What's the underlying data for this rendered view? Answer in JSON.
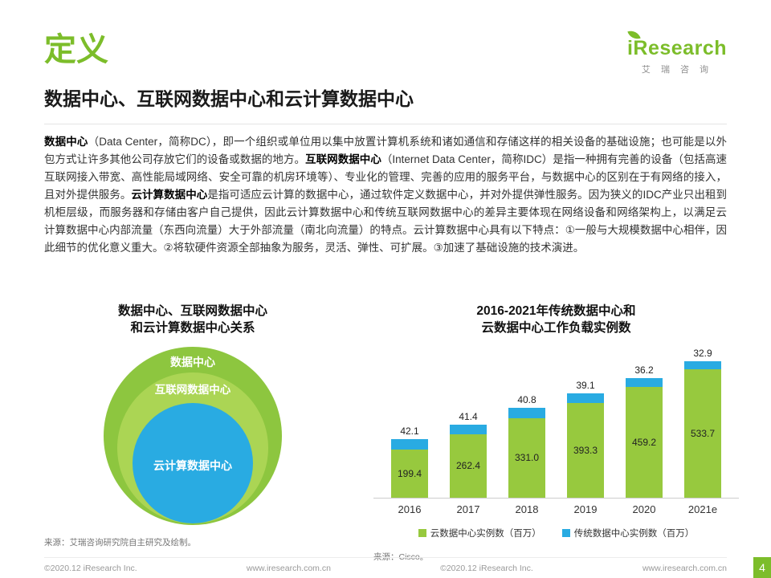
{
  "page": {
    "section_title": "定义",
    "subtitle": "数据中心、互联网数据中心和云计算数据中心"
  },
  "logo": {
    "brand": "iResearch",
    "brand_cn": "艾 瑞 咨 询"
  },
  "colors": {
    "brand_green": "#7cbd2a",
    "bar_green": "#97c93e",
    "bar_cyan": "#29abe2"
  },
  "body": {
    "segments": [
      {
        "text": "数据中心",
        "bold": true
      },
      {
        "text": "（Data Center，简称DC），即一个组织或单位用以集中放置计算机系统和诸如通信和存储这样的相关设备的基础设施；也可能是以外包方式让许多其他公司存放它们的设备或数据的地方。",
        "bold": false
      },
      {
        "text": "互联网数据中心",
        "bold": true
      },
      {
        "text": "（Internet Data Center，简称IDC）是指一种拥有完善的设备（包括高速互联网接入带宽、高性能局域网络、安全可靠的机房环境等）、专业化的管理、完善的应用的服务平台，与数据中心的区别在于有网络的接入，且对外提供服务。",
        "bold": false
      },
      {
        "text": "云计算数据中心",
        "bold": true
      },
      {
        "text": "是指可适应云计算的数据中心，通过软件定义数据中心，并对外提供弹性服务。因为狭义的IDC产业只出租到机柜层级，而服务器和存储由客户自己提供，因此云计算数据中心和传统互联网数据中心的差异主要体现在网络设备和网络架构上，以满足云计算数据中心内部流量（东西向流量）大于外部流量（南北向流量）的特点。云计算数据中心具有以下特点：①一般与大规模数据中心相伴，因此细节的优化意义重大。②将软硬件资源全部抽象为服务，灵活、弹性、可扩展。③加速了基础设施的技术演进。",
        "bold": false
      }
    ]
  },
  "figures": {
    "venn": {
      "title_line1": "数据中心、互联网数据中心",
      "title_line2": "和云计算数据中心关系",
      "rings": [
        {
          "label": "数据中心",
          "color": "#8dc63f"
        },
        {
          "label": "互联网数据中心",
          "color": "#abd554"
        },
        {
          "label": "云计算数据中心",
          "color": "#29abe2"
        }
      ],
      "source": "来源：艾瑞咨询研究院自主研究及绘制。"
    },
    "bar": {
      "title_line1": "2016-2021年传统数据中心和",
      "title_line2": "云数据中心工作负载实例数",
      "source": "来源：Cisco。"
    }
  },
  "chart_data": {
    "type": "bar",
    "stacked": true,
    "title": "2016-2021年传统数据中心和云数据中心工作负载实例数",
    "categories": [
      "2016",
      "2017",
      "2018",
      "2019",
      "2020",
      "2021e"
    ],
    "series": [
      {
        "name": "云数据中心实例数（百万）",
        "color": "#97c93e",
        "values": [
          199.4,
          262.4,
          331.0,
          393.3,
          459.2,
          533.7
        ]
      },
      {
        "name": "传统数据中心实例数（百万）",
        "color": "#29abe2",
        "values": [
          42.1,
          41.4,
          40.8,
          39.1,
          36.2,
          32.9
        ]
      }
    ],
    "xlabel": "",
    "ylabel": "",
    "ylim": [
      0,
      600
    ],
    "grid": false,
    "legend_position": "bottom"
  },
  "footer": {
    "left_copyright": "©2020.12 iResearch Inc.",
    "left_site": "www.iresearch.com.cn",
    "right_copyright": "©2020.12 iResearch Inc.",
    "right_site": "www.iresearch.com.cn",
    "page_number": "4"
  }
}
